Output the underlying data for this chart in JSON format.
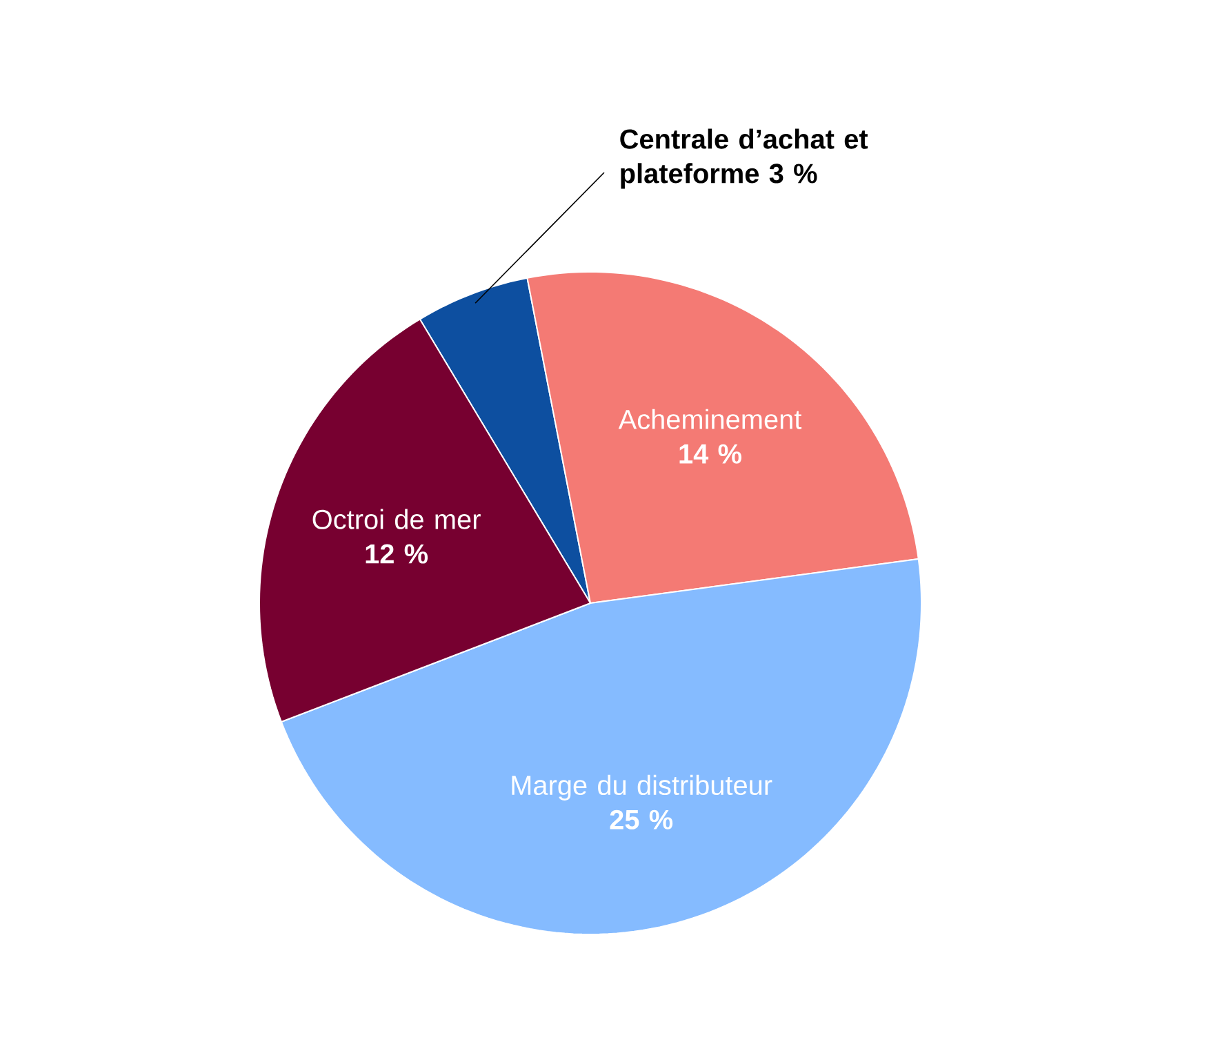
{
  "chart_data": {
    "type": "pie",
    "categories": [
      "Centrale d’achat et plateforme",
      "Acheminement",
      "Marge du distributeur",
      "Octroi de mer"
    ],
    "values": [
      3,
      14,
      25,
      12
    ],
    "value_labels": [
      "3 %",
      "14 %",
      "25 %",
      "12 %"
    ],
    "colors": [
      "#0d4fa0",
      "#f47a74",
      "#85bbff",
      "#770030"
    ]
  }
}
